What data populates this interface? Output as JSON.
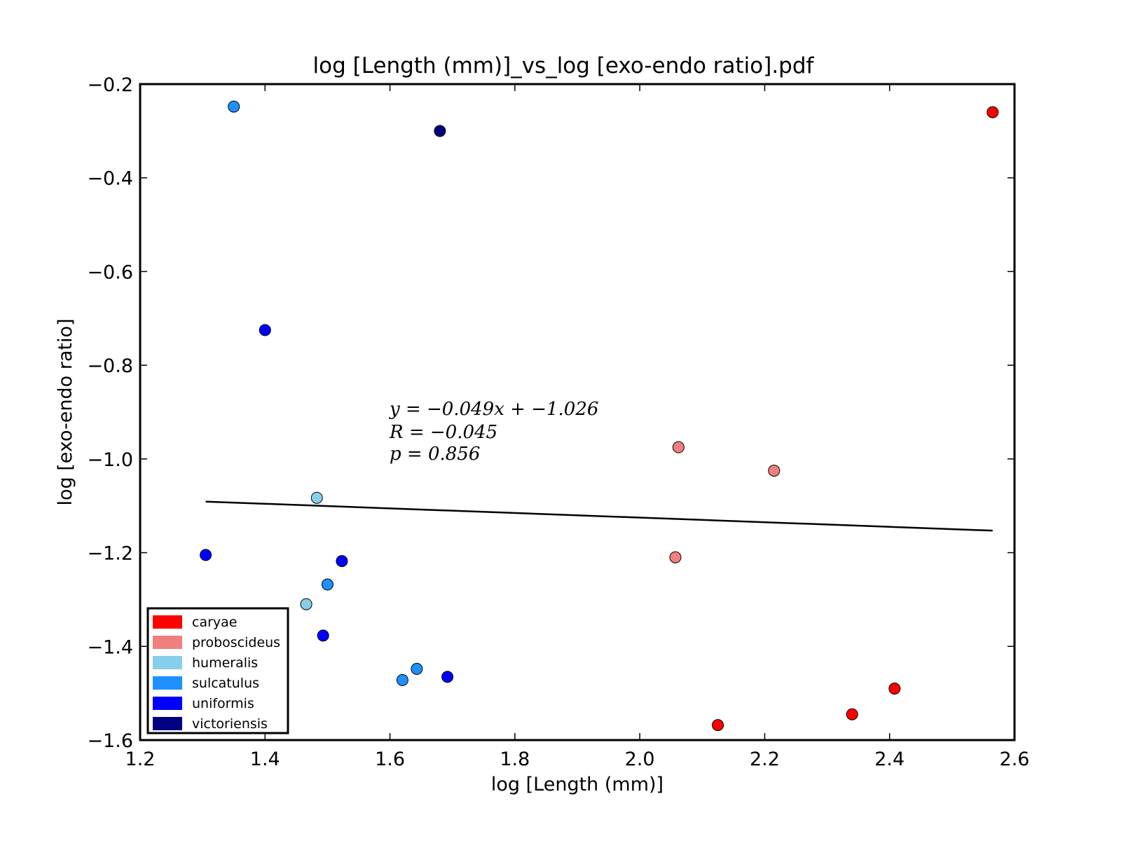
{
  "chart_data": {
    "type": "scatter",
    "title": "log [Length (mm)]_vs_log [exo-endo ratio].pdf",
    "xlabel": "log [Length (mm)]",
    "ylabel": "log [exo-endo ratio]",
    "xlim": [
      1.2,
      2.6
    ],
    "ylim": [
      -1.6,
      -0.2
    ],
    "x_ticks": [
      "1.2",
      "1.4",
      "1.6",
      "1.8",
      "2.0",
      "2.2",
      "2.4",
      "2.6"
    ],
    "y_ticks": [
      "−0.2",
      "−0.4",
      "−0.6",
      "−0.8",
      "−1.0",
      "−1.2",
      "−1.4",
      "−1.6"
    ],
    "grid": false,
    "legend_position": "lower-left",
    "series": [
      {
        "name": "caryae",
        "color": "#ff0000",
        "points": [
          [
            2.565,
            -0.26
          ],
          [
            2.125,
            -1.568
          ],
          [
            2.34,
            -1.545
          ],
          [
            2.408,
            -1.49
          ]
        ]
      },
      {
        "name": "proboscideus",
        "color": "#f08080",
        "points": [
          [
            2.062,
            -0.975
          ],
          [
            2.215,
            -1.025
          ],
          [
            2.057,
            -1.21
          ]
        ]
      },
      {
        "name": "humeralis",
        "color": "#87ceeb",
        "points": [
          [
            1.483,
            -1.083
          ],
          [
            1.466,
            -1.31
          ]
        ]
      },
      {
        "name": "sulcatulus",
        "color": "#1e90ff",
        "points": [
          [
            1.35,
            -0.248
          ],
          [
            1.5,
            -1.268
          ],
          [
            1.62,
            -1.472
          ],
          [
            1.643,
            -1.448
          ]
        ]
      },
      {
        "name": "uniformis",
        "color": "#0000ff",
        "points": [
          [
            1.4,
            -0.725
          ],
          [
            1.305,
            -1.205
          ],
          [
            1.523,
            -1.218
          ],
          [
            1.493,
            -1.377
          ],
          [
            1.692,
            -1.465
          ]
        ]
      },
      {
        "name": "victoriensis",
        "color": "#000080",
        "points": [
          [
            1.68,
            -0.3
          ]
        ]
      }
    ],
    "regression": {
      "x_range": [
        1.305,
        2.565
      ],
      "slope": -0.049,
      "intercept": -1.026,
      "annotation_lines": [
        "y = −0.049x + −1.026",
        "R = −0.045",
        "p = 0.856"
      ]
    }
  }
}
